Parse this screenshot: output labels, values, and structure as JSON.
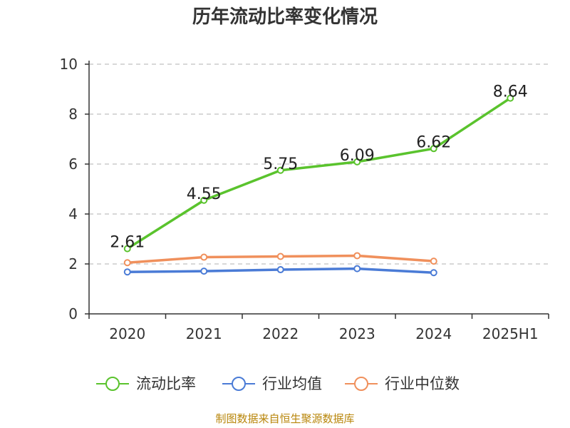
{
  "chart_data": {
    "type": "line",
    "title": "历年流动比率变化情况",
    "categories": [
      "2020",
      "2021",
      "2022",
      "2023",
      "2024",
      "2025H1"
    ],
    "ylim": [
      0,
      10
    ],
    "y_ticks": [
      "0",
      "2",
      "4",
      "6",
      "8",
      "10"
    ],
    "grid": true,
    "legend_position": "bottom",
    "series": [
      {
        "name": "流动比率",
        "color": "#5ac32d",
        "values": [
          2.61,
          4.55,
          5.75,
          6.09,
          6.62,
          8.64
        ],
        "data_labels": [
          "2.61",
          "4.55",
          "5.75",
          "6.09",
          "6.62",
          "8.64"
        ]
      },
      {
        "name": "行业均值",
        "color": "#4a7bd6",
        "values": [
          1.68,
          1.71,
          1.77,
          1.81,
          1.65,
          null
        ]
      },
      {
        "name": "行业中位数",
        "color": "#f0905c",
        "values": [
          2.05,
          2.27,
          2.3,
          2.33,
          2.11,
          null
        ]
      }
    ]
  },
  "source": "制图数据来自恒生聚源数据库"
}
